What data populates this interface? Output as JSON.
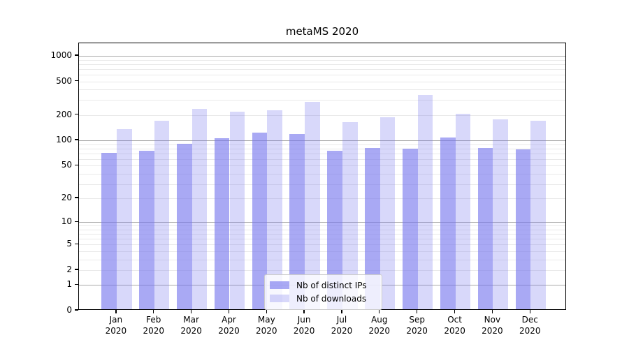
{
  "title": "metaMS 2020",
  "chart_data": {
    "type": "bar",
    "title": "metaMS 2020",
    "categories": [
      "Jan",
      "Feb",
      "Mar",
      "Apr",
      "May",
      "Jun",
      "Jul",
      "Aug",
      "Sep",
      "Oct",
      "Nov",
      "Dec"
    ],
    "category_year": "2020",
    "series": [
      {
        "name": "Nb of distinct IPs",
        "color": "rgba(116,116,238,0.62)",
        "values": [
          68,
          72,
          87,
          102,
          120,
          114,
          72,
          78,
          77,
          104,
          79,
          75
        ]
      },
      {
        "name": "Nb of downloads",
        "color": "rgba(116,116,238,0.28)",
        "values": [
          132,
          165,
          226,
          211,
          218,
          277,
          160,
          181,
          330,
          201,
          172,
          165
        ]
      }
    ],
    "xlabel": "",
    "ylabel": "",
    "yscale": "log10(1+y)",
    "yticks": [
      0,
      1,
      2,
      5,
      10,
      20,
      50,
      100,
      200,
      500,
      1000
    ],
    "ylim": [
      0,
      1405
    ],
    "grid": "horizontal major and minor log gridlines",
    "legend_position": "lower center"
  },
  "colors": {
    "bar_ips": "rgba(116,116,238,0.62)",
    "bar_downloads": "rgba(116,116,238,0.28)",
    "major_grid": "#a8a8a8",
    "minor_grid": "#e9e9e9",
    "axis": "#000000",
    "background": "#ffffff"
  }
}
